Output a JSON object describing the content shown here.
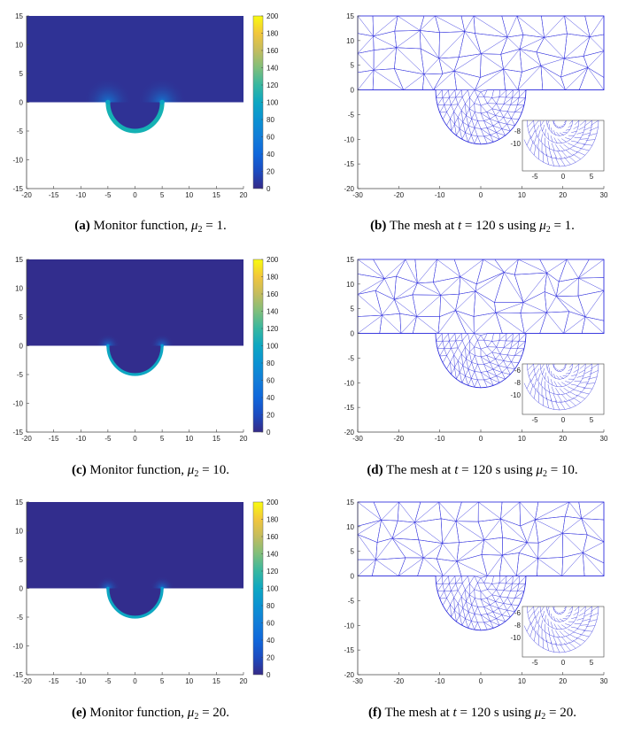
{
  "figure": {
    "panels": [
      {
        "id": "a",
        "kind": "monitor",
        "caption": {
          "label": "(a)",
          "text_before": "Monitor function, ",
          "symbol": "μ",
          "sub": "2",
          "text_after": " = 1."
        },
        "mu": 1
      },
      {
        "id": "b",
        "kind": "mesh",
        "caption": {
          "label": "(b)",
          "text_before": "The mesh at ",
          "t_symbol": "t",
          "text_mid": " = 120 s using ",
          "symbol": "μ",
          "sub": "2",
          "text_after": " = 1."
        },
        "mu": 1
      },
      {
        "id": "c",
        "kind": "monitor",
        "caption": {
          "label": "(c)",
          "text_before": "Monitor function, ",
          "symbol": "μ",
          "sub": "2",
          "text_after": " = 10."
        },
        "mu": 10
      },
      {
        "id": "d",
        "kind": "mesh",
        "caption": {
          "label": "(d)",
          "text_before": "The mesh at ",
          "t_symbol": "t",
          "text_mid": " = 120 s using ",
          "symbol": "μ",
          "sub": "2",
          "text_after": " = 10."
        },
        "mu": 10
      },
      {
        "id": "e",
        "kind": "monitor",
        "caption": {
          "label": "(e)",
          "text_before": "Monitor function, ",
          "symbol": "μ",
          "sub": "2",
          "text_after": " = 20."
        },
        "mu": 20
      },
      {
        "id": "f",
        "kind": "mesh",
        "caption": {
          "label": "(f)",
          "text_before": "The mesh at ",
          "t_symbol": "t",
          "text_mid": " = 120 s using ",
          "symbol": "μ",
          "sub": "2",
          "text_after": " = 20."
        },
        "mu": 20
      }
    ]
  },
  "chart_data": [
    {
      "type": "heatmap",
      "panel": "a",
      "xlim": [
        -20,
        20
      ],
      "ylim": [
        -15,
        15
      ],
      "xticks": [
        "-20",
        "-15",
        "-10",
        "-5",
        "0",
        "5",
        "10",
        "15",
        "20"
      ],
      "yticks": [
        "15",
        "10",
        "5",
        "0",
        "-5",
        "-10",
        "-15"
      ],
      "colorbar": {
        "min": 0,
        "max": 200,
        "ticks": [
          "200",
          "180",
          "160",
          "140",
          "120",
          "100",
          "80",
          "60",
          "40",
          "20",
          "0"
        ]
      },
      "trench": {
        "center": [
          0,
          0
        ],
        "radius": 5
      },
      "peak_value": 110,
      "background_value": 5
    },
    {
      "type": "mesh",
      "panel": "b",
      "xlim": [
        -30,
        30
      ],
      "ylim": [
        -20,
        15
      ],
      "xticks": [
        "-30",
        "-20",
        "-10",
        "0",
        "10",
        "20",
        "30"
      ],
      "yticks": [
        "15",
        "10",
        "5",
        "0",
        "-5",
        "-10",
        "-15",
        "-20"
      ],
      "inset": {
        "xticks": [
          "-5",
          "0",
          "5"
        ],
        "yticks": [
          "-8",
          "-10"
        ]
      }
    },
    {
      "type": "heatmap",
      "panel": "c",
      "xlim": [
        -20,
        20
      ],
      "ylim": [
        -15,
        15
      ],
      "xticks": [
        "-20",
        "-15",
        "-10",
        "-5",
        "0",
        "5",
        "10",
        "15",
        "20"
      ],
      "yticks": [
        "15",
        "10",
        "5",
        "0",
        "-5",
        "-10",
        "-15"
      ],
      "colorbar": {
        "min": 0,
        "max": 200,
        "ticks": [
          "200",
          "180",
          "160",
          "140",
          "120",
          "100",
          "80",
          "60",
          "40",
          "20",
          "0"
        ]
      },
      "trench": {
        "center": [
          0,
          0
        ],
        "radius": 5
      },
      "peak_value": 100,
      "background_value": 2
    },
    {
      "type": "mesh",
      "panel": "d",
      "xlim": [
        -30,
        30
      ],
      "ylim": [
        -20,
        15
      ],
      "xticks": [
        "-30",
        "-20",
        "-10",
        "0",
        "10",
        "20",
        "30"
      ],
      "yticks": [
        "15",
        "10",
        "5",
        "0",
        "-5",
        "-10",
        "-15",
        "-20"
      ],
      "inset": {
        "xticks": [
          "-5",
          "0",
          "5"
        ],
        "yticks": [
          "-6",
          "-8",
          "-10"
        ]
      }
    },
    {
      "type": "heatmap",
      "panel": "e",
      "xlim": [
        -20,
        20
      ],
      "ylim": [
        -15,
        15
      ],
      "xticks": [
        "-20",
        "-15",
        "-10",
        "-5",
        "0",
        "5",
        "10",
        "15",
        "20"
      ],
      "yticks": [
        "15",
        "10",
        "5",
        "0",
        "-5",
        "-10",
        "-15"
      ],
      "colorbar": {
        "min": 0,
        "max": 200,
        "ticks": [
          "200",
          "180",
          "160",
          "140",
          "120",
          "100",
          "80",
          "60",
          "40",
          "20",
          "0"
        ]
      },
      "trench": {
        "center": [
          0,
          0
        ],
        "radius": 5
      },
      "peak_value": 100,
      "background_value": 2
    },
    {
      "type": "mesh",
      "panel": "f",
      "xlim": [
        -30,
        30
      ],
      "ylim": [
        -20,
        15
      ],
      "xticks": [
        "-30",
        "-20",
        "-10",
        "0",
        "10",
        "20",
        "30"
      ],
      "yticks": [
        "15",
        "10",
        "5",
        "0",
        "-5",
        "-10",
        "-15",
        "-20"
      ],
      "inset": {
        "xticks": [
          "-5",
          "0",
          "5"
        ],
        "yticks": [
          "-6",
          "-8",
          "-10"
        ]
      }
    }
  ],
  "colors": {
    "mesh": "#2b2bdc",
    "axis": "#444444",
    "background": "#3e3eb8"
  }
}
